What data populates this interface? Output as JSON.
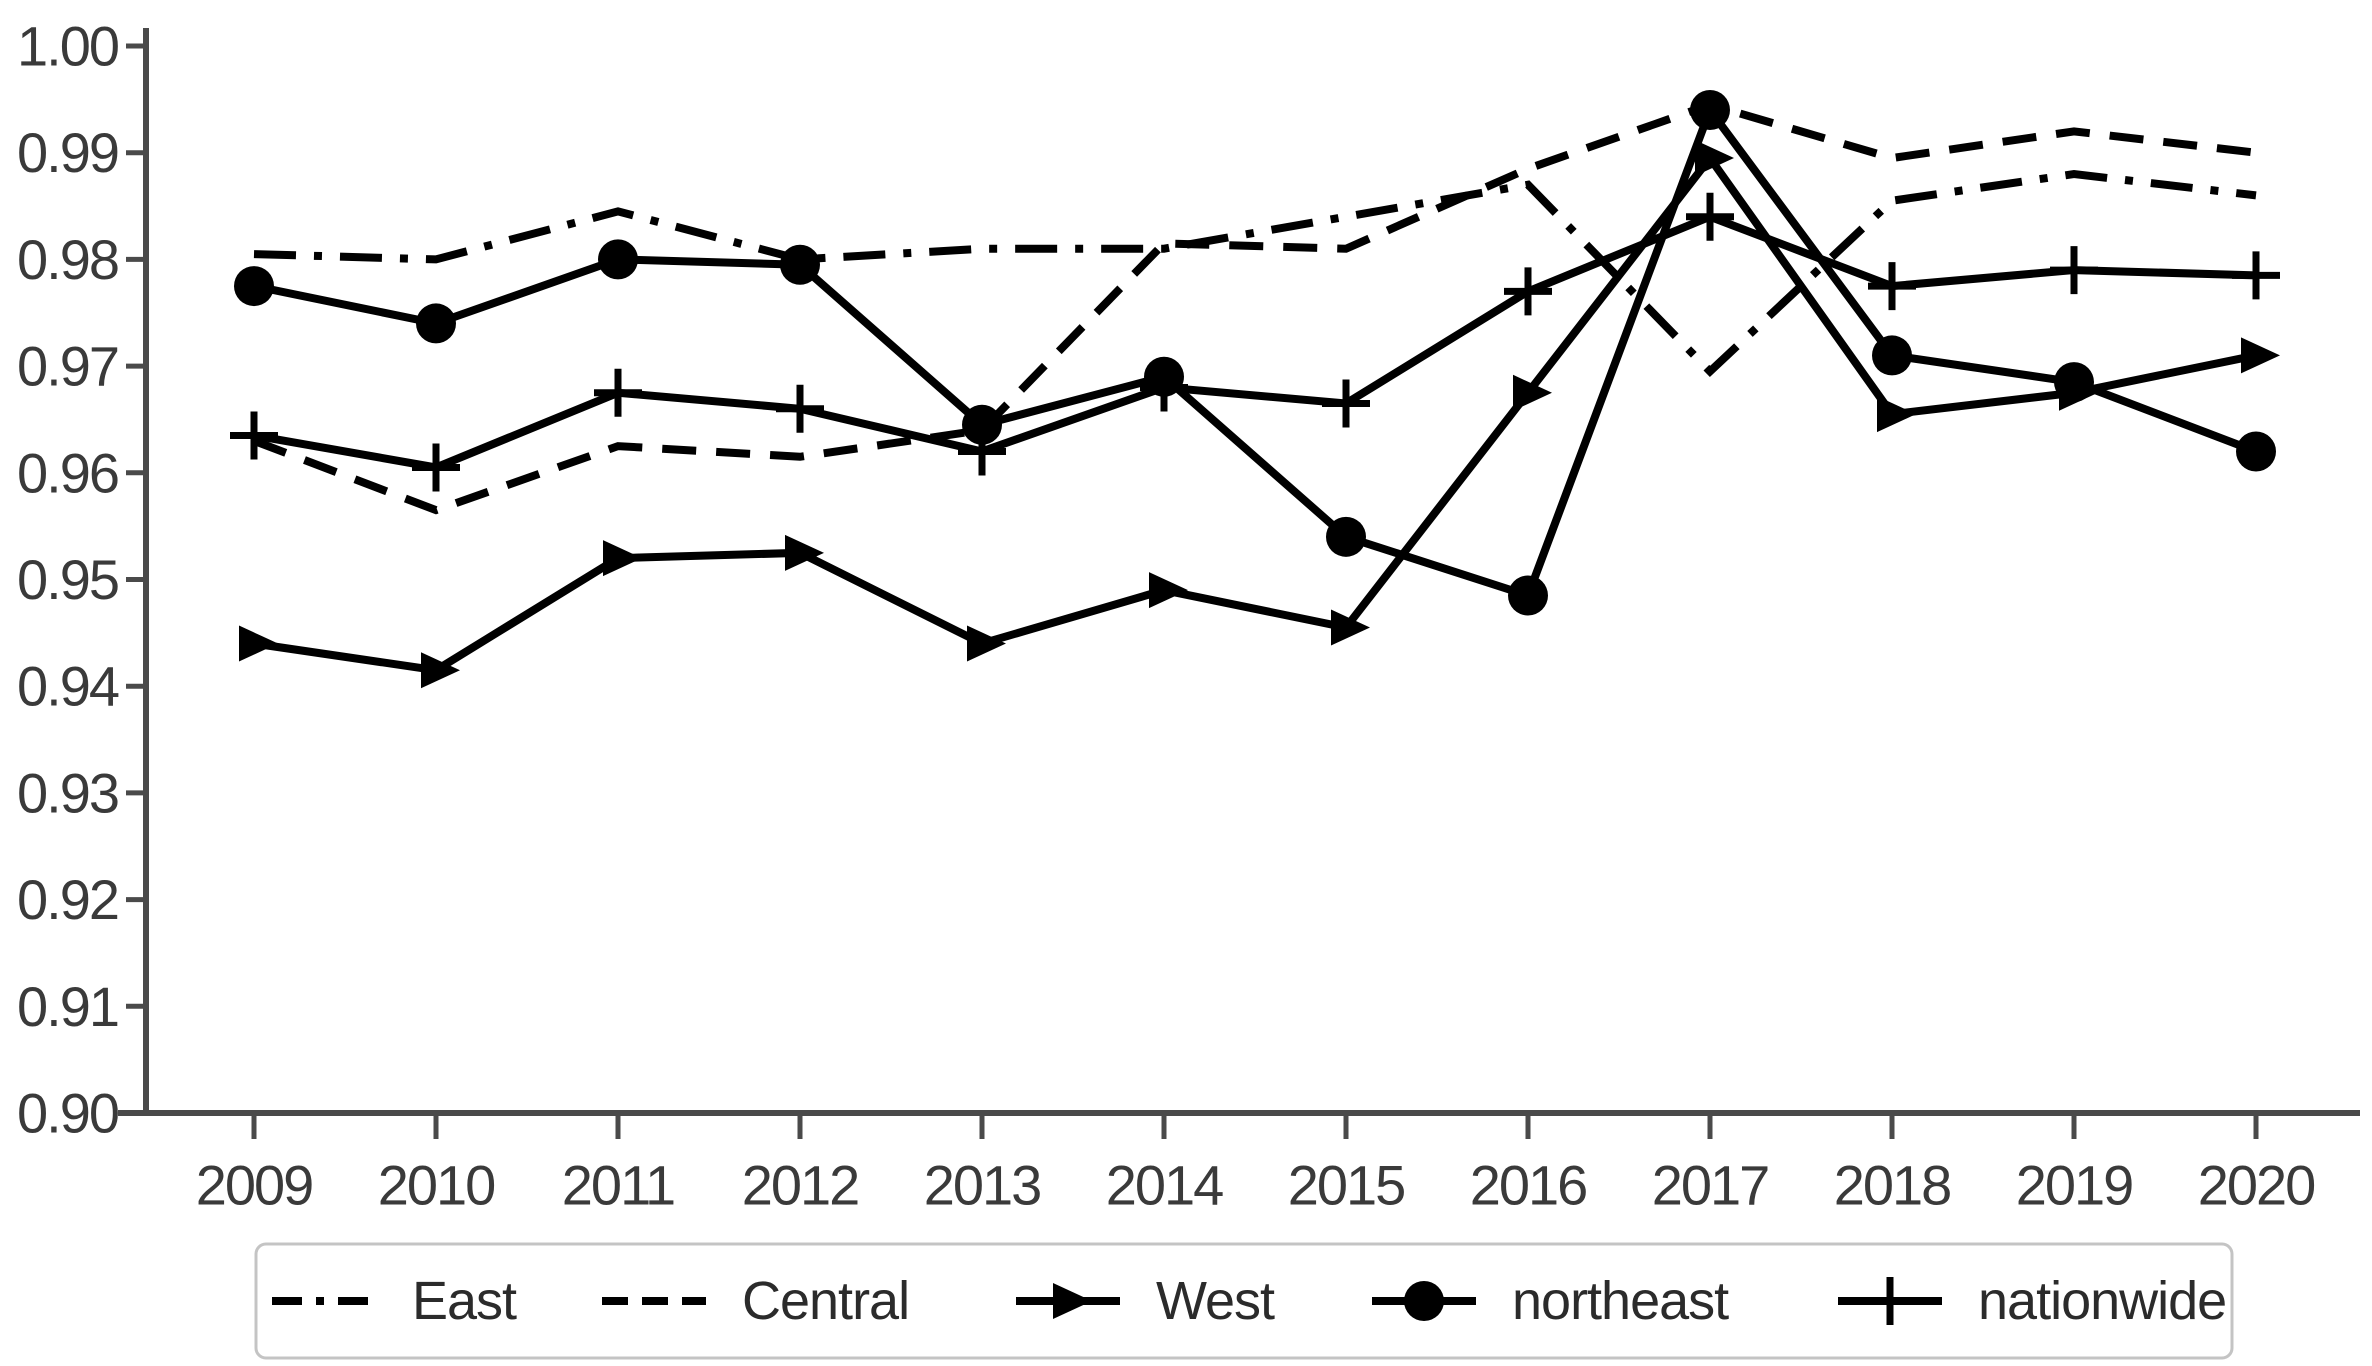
{
  "figure": {
    "background_color": "#ffffff",
    "line_color": "#000000",
    "axis_color": "#4a4a4a",
    "tick_label_color": "#3a3a3a",
    "legend_border_color": "#c4c4c4"
  },
  "chart_data": {
    "type": "line",
    "title": "",
    "xlabel": "",
    "ylabel": "",
    "grid": false,
    "legend_position": "bottom",
    "ylim": [
      0.9,
      1.0
    ],
    "ytick_step": 0.01,
    "ytick_labels": [
      "1.00",
      "0.99",
      "0.98",
      "0.97",
      "0.96",
      "0.95",
      "0.94",
      "0.93",
      "0.92",
      "0.91",
      "0.90"
    ],
    "x": [
      2009,
      2010,
      2011,
      2012,
      2013,
      2014,
      2015,
      2016,
      2017,
      2018,
      2019,
      2020
    ],
    "xtick_labels": [
      "2009",
      "2010",
      "2011",
      "2012",
      "2013",
      "2014",
      "2015",
      "2016",
      "2017",
      "2018",
      "2019",
      "2020"
    ],
    "series": [
      {
        "name": "East",
        "line_style": "dash-dot",
        "marker": "none",
        "values": [
          0.9805,
          0.98,
          0.9845,
          0.98,
          0.981,
          0.981,
          0.984,
          0.987,
          0.9695,
          0.9855,
          0.988,
          0.986
        ]
      },
      {
        "name": "Central",
        "line_style": "dashed",
        "marker": "none",
        "values": [
          0.963,
          0.9565,
          0.9625,
          0.9615,
          0.964,
          0.9815,
          0.981,
          0.9885,
          0.9945,
          0.9895,
          0.992,
          0.99
        ]
      },
      {
        "name": "West",
        "line_style": "solid",
        "marker": "triangle-right",
        "values": [
          0.944,
          0.9415,
          0.952,
          0.9525,
          0.944,
          0.949,
          0.9455,
          0.9675,
          0.9895,
          0.9655,
          0.9675,
          0.971
        ]
      },
      {
        "name": "northeast",
        "line_style": "solid",
        "marker": "circle",
        "values": [
          0.9775,
          0.974,
          0.98,
          0.9795,
          0.9645,
          0.969,
          0.954,
          0.9485,
          0.994,
          0.971,
          0.9685,
          0.962
        ]
      },
      {
        "name": "nationwide",
        "line_style": "solid",
        "marker": "plus",
        "values": [
          0.9635,
          0.9605,
          0.9675,
          0.966,
          0.962,
          0.968,
          0.9665,
          0.977,
          0.984,
          0.9775,
          0.979,
          0.9785
        ]
      }
    ]
  }
}
